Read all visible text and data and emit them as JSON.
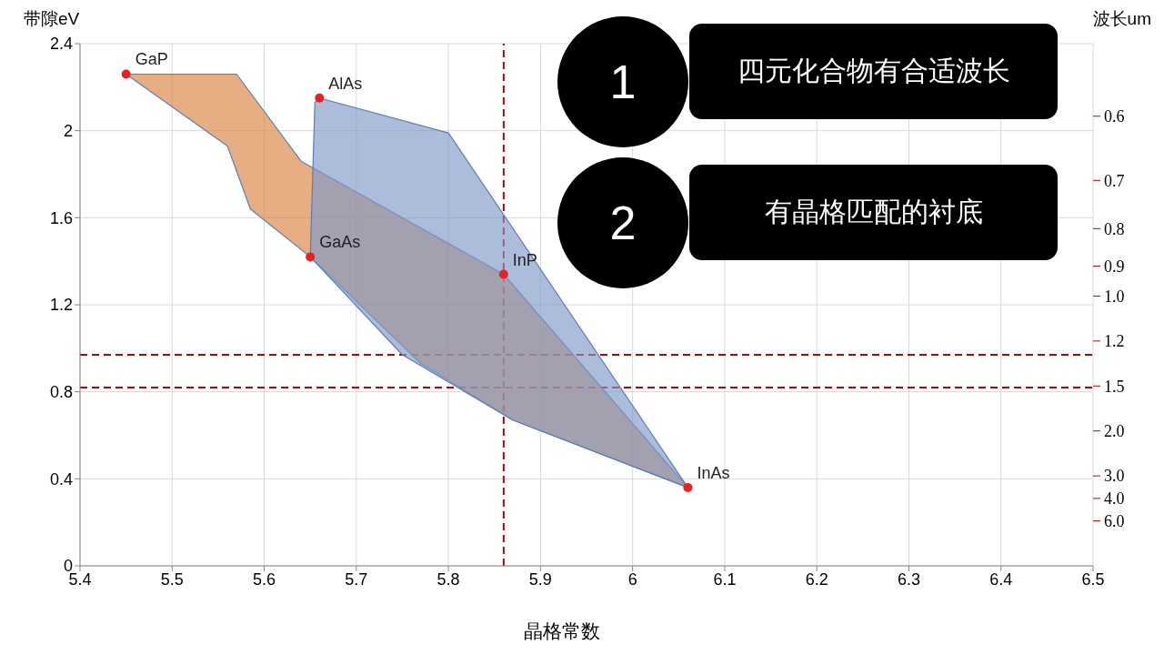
{
  "chart_data": {
    "type": "scatter",
    "xlabel": "晶格常数",
    "ylabel": "带隙eV",
    "y2label": "波长um",
    "xlim": [
      5.4,
      6.5
    ],
    "xticks": [
      5.4,
      5.5,
      5.6,
      5.7,
      5.8,
      5.9,
      6,
      6.1,
      6.2,
      6.3,
      6.4,
      6.5
    ],
    "ylim": [
      0,
      2.4
    ],
    "yticks": [
      0,
      0.4,
      0.8,
      1.2,
      1.6,
      2,
      2.4
    ],
    "grid": true,
    "series": [
      {
        "type": "area",
        "color": "#d8823f",
        "x": [
          5.45,
          5.57,
          5.64,
          5.86,
          6.06,
          5.87,
          5.77,
          5.65,
          5.585,
          5.56
        ],
        "values": [
          2.26,
          2.26,
          1.86,
          1.34,
          0.36,
          0.67,
          0.93,
          1.42,
          1.64,
          1.93
        ]
      },
      {
        "type": "area",
        "color": "#7f98c7",
        "x": [
          5.66,
          5.8,
          6.06,
          5.87,
          5.75,
          5.65,
          5.655
        ],
        "values": [
          2.15,
          1.99,
          0.36,
          0.67,
          0.97,
          1.42,
          2.13
        ]
      },
      {
        "color": "#e8231f",
        "marker": "circle",
        "x": [
          5.45,
          5.66,
          5.65,
          5.86,
          6.06
        ],
        "values": [
          2.26,
          2.15,
          1.42,
          1.34,
          0.36
        ]
      }
    ],
    "ref_lines": [
      {
        "axis": "x",
        "value": 5.86,
        "color": "#c00000",
        "line_style": "dashed"
      },
      {
        "axis": "y",
        "value": 0.97,
        "color": "#c00000",
        "line_style": "dashed"
      },
      {
        "axis": "y",
        "value": 0.82,
        "color": "#c00000",
        "line_style": "dashed"
      }
    ],
    "annotations": [
      {
        "text": "GaP",
        "x": 5.45,
        "y": 2.26
      },
      {
        "text": "AlAs",
        "x": 5.66,
        "y": 2.15
      },
      {
        "text": "GaAs",
        "x": 5.65,
        "y": 1.42
      },
      {
        "text": "InP",
        "x": 5.86,
        "y": 1.34
      },
      {
        "text": "InAs",
        "x": 6.06,
        "y": 0.36
      },
      "0.6",
      "0.7",
      "0.8",
      "0.9",
      "1.0",
      "1.2",
      "1.5",
      "2.0",
      "3.0",
      "4.0",
      "6.0",
      "1",
      "四元化合物有合适波长",
      "2",
      "有晶格匹配的衬底"
    ]
  }
}
